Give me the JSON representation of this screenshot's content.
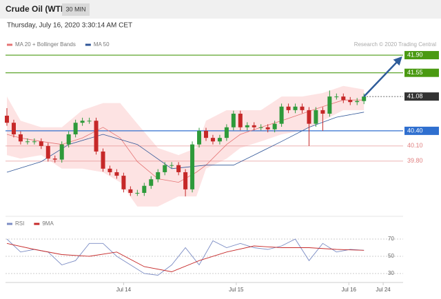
{
  "header": {
    "instrument": "Crude Oil (WTI)",
    "timeframe": "30 MIN",
    "timestamp": "Thursday, July 16, 2020 3:30:14 AM CET",
    "credit": "Research © 2020 Trading Central"
  },
  "chart_data": [
    {
      "type": "candlestick",
      "x": [
        0,
        1,
        2,
        3,
        4,
        5,
        6,
        7,
        8,
        9,
        10,
        11,
        12,
        13,
        14,
        15,
        16,
        17,
        18,
        19,
        20,
        21,
        22,
        23,
        24,
        25,
        26,
        27,
        28,
        29,
        30,
        31,
        32,
        33,
        34,
        35,
        36,
        37,
        38,
        39,
        40,
        41,
        42,
        43,
        44,
        45,
        46,
        47,
        48,
        49,
        50,
        51,
        52
      ],
      "open": [
        40.7,
        40.56,
        40.33,
        40.19,
        40.19,
        40.19,
        40.1,
        39.85,
        39.83,
        40.13,
        40.33,
        40.56,
        40.6,
        40.6,
        39.99,
        39.65,
        39.58,
        39.51,
        39.24,
        39.17,
        39.17,
        39.31,
        39.44,
        39.58,
        39.72,
        39.72,
        39.58,
        39.24,
        40.13,
        40.4,
        40.26,
        40.19,
        40.26,
        40.47,
        40.74,
        40.47,
        40.51,
        40.47,
        40.47,
        40.43,
        40.54,
        40.88,
        40.81,
        40.88,
        40.81,
        40.54,
        40.81,
        40.74,
        41.08,
        41.08,
        41.01,
        40.97,
        40.99
      ],
      "high": [
        40.85,
        40.62,
        40.39,
        40.25,
        40.25,
        40.25,
        40.16,
        39.91,
        40.19,
        40.39,
        40.62,
        40.66,
        40.66,
        40.66,
        40.05,
        39.71,
        39.64,
        39.57,
        39.3,
        39.23,
        39.37,
        39.5,
        39.64,
        39.78,
        39.78,
        39.78,
        39.64,
        40.19,
        40.46,
        40.46,
        40.32,
        40.32,
        40.53,
        40.8,
        40.8,
        40.57,
        40.57,
        40.53,
        40.53,
        40.6,
        40.94,
        40.94,
        40.94,
        40.94,
        40.87,
        40.87,
        40.87,
        41.2,
        41.14,
        41.14,
        41.07,
        41.05,
        41.14
      ],
      "low": [
        40.5,
        40.27,
        40.13,
        40.13,
        40.13,
        40.04,
        39.79,
        39.77,
        39.77,
        40.07,
        40.27,
        40.5,
        40.54,
        39.93,
        39.59,
        39.52,
        39.45,
        39.18,
        39.11,
        39.11,
        39.11,
        39.25,
        39.38,
        39.52,
        39.66,
        39.52,
        39.1,
        39.18,
        40.07,
        40.2,
        40.13,
        40.13,
        40.2,
        40.41,
        40.41,
        40.41,
        40.41,
        40.41,
        40.37,
        40.37,
        40.48,
        40.75,
        40.75,
        40.75,
        40.1,
        40.48,
        40.4,
        40.68,
        41.02,
        40.95,
        40.91,
        40.91,
        40.93
      ],
      "close": [
        40.56,
        40.33,
        40.19,
        40.19,
        40.19,
        40.1,
        39.85,
        39.83,
        40.13,
        40.33,
        40.56,
        40.6,
        40.6,
        39.99,
        39.65,
        39.58,
        39.51,
        39.24,
        39.17,
        39.17,
        39.31,
        39.44,
        39.58,
        39.72,
        39.72,
        39.58,
        39.24,
        40.13,
        40.4,
        40.26,
        40.19,
        40.26,
        40.47,
        40.74,
        40.47,
        40.51,
        40.47,
        40.47,
        40.43,
        40.54,
        40.88,
        40.81,
        40.88,
        40.81,
        40.54,
        40.81,
        40.74,
        41.08,
        41.08,
        41.01,
        40.97,
        40.99,
        41.08
      ],
      "up_color": "#2e9a3a",
      "down_color": "#c62828",
      "series": [
        {
          "name": "MA 20 + Bollinger Bands",
          "color": "#e57373",
          "band_color": "#fde3e3",
          "x": [
            0,
            2,
            5,
            8,
            11,
            14,
            16.5,
            19,
            22,
            25,
            27.6,
            29,
            32,
            34,
            37,
            40,
            43,
            46,
            49,
            52
          ],
          "values": [
            40.33,
            40.26,
            40.19,
            40.13,
            40.26,
            40.47,
            40.26,
            39.79,
            39.45,
            39.38,
            39.58,
            39.72,
            40.13,
            40.33,
            40.47,
            40.6,
            40.74,
            40.88,
            41.01,
            41.01
          ],
          "upper": [
            41.08,
            40.6,
            40.47,
            40.47,
            40.81,
            40.95,
            40.95,
            40.54,
            40.06,
            39.92,
            40.06,
            40.6,
            40.81,
            40.81,
            40.81,
            41.08,
            41.08,
            41.15,
            41.29,
            41.22
          ],
          "lower": [
            39.92,
            39.85,
            39.92,
            39.65,
            39.65,
            39.58,
            39.38,
            38.9,
            38.9,
            39.1,
            39.1,
            39.65,
            39.85,
            40.06,
            40.19,
            40.33,
            40.4,
            40.6,
            40.81,
            40.81
          ]
        },
        {
          "name": "MA 50",
          "color": "#2f5597",
          "x": [
            0,
            5,
            9,
            14,
            19,
            24,
            29,
            33,
            36,
            40,
            44,
            48,
            52
          ],
          "values": [
            39.58,
            39.79,
            40.13,
            40.33,
            40.13,
            39.65,
            39.72,
            39.72,
            39.92,
            40.19,
            40.47,
            40.67,
            40.77
          ]
        }
      ],
      "levels": [
        {
          "value": 41.9,
          "label": "41.90",
          "color": "#4a9a12",
          "style": "solid",
          "boxed": true
        },
        {
          "value": 41.55,
          "label": "41.55",
          "color": "#4a9a12",
          "style": "solid",
          "boxed": true
        },
        {
          "value": 41.08,
          "label": "41.08",
          "color": "#333333",
          "style": "dotted",
          "boxed": true
        },
        {
          "value": 40.4,
          "label": "40.40",
          "color": "#2f6fcf",
          "style": "solid",
          "boxed": true
        },
        {
          "value": 40.1,
          "label": "40.10",
          "color": "#e08080",
          "style": "solid",
          "boxed": false
        },
        {
          "value": 39.8,
          "label": "39.80",
          "color": "#e08080",
          "style": "solid",
          "boxed": false
        }
      ],
      "projection": {
        "x": [
          52,
          57.4
        ],
        "y": [
          41.08,
          41.85
        ],
        "color": "#2e5c9a"
      },
      "xlim": [
        -0.2,
        57.7
      ],
      "ylim": [
        38.76,
        42.01
      ]
    },
    {
      "type": "line",
      "series": [
        {
          "name": "RSI",
          "color": "#7b8cc4",
          "x": [
            0,
            2,
            4,
            6,
            8,
            10,
            12,
            14,
            16,
            18,
            20,
            22,
            24,
            26,
            28,
            30,
            32,
            34,
            36,
            38,
            40,
            42,
            44,
            46,
            48,
            50,
            52
          ],
          "values": [
            70,
            55,
            58,
            55,
            40,
            45,
            65,
            65,
            50,
            40,
            30,
            28,
            40,
            60,
            40,
            68,
            60,
            65,
            60,
            58,
            62,
            70,
            45,
            65,
            55,
            58,
            57
          ]
        },
        {
          "name": "9MA",
          "color": "#c62828",
          "x": [
            0,
            4,
            8,
            12,
            16,
            20,
            24,
            28,
            32,
            36,
            40,
            44,
            48,
            52
          ],
          "values": [
            65,
            58,
            52,
            50,
            55,
            38,
            32,
            45,
            55,
            62,
            60,
            60,
            58,
            57
          ]
        }
      ],
      "xlim": [
        -0.2,
        57.7
      ],
      "ylim": [
        19.6,
        93.2
      ],
      "yticks": [
        30,
        50,
        70
      ],
      "xticks": [
        {
          "value": 17,
          "label": "Jul 14"
        },
        {
          "value": 33.4,
          "label": "Jul 15"
        },
        {
          "value": 49.8,
          "label": "Jul 16"
        },
        {
          "value": 54.8,
          "label": "Jul 24"
        }
      ]
    }
  ]
}
